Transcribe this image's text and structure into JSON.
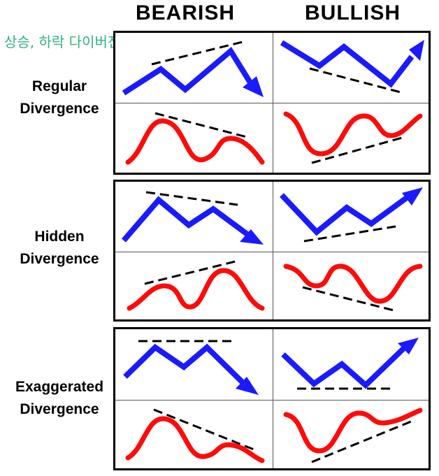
{
  "headers": {
    "bearish": "BEARISH",
    "bullish": "BULLISH"
  },
  "overlay_title": "상승, 하락 다이버전스",
  "rows": [
    {
      "label_line1": "Regular",
      "label_line2": "Divergence"
    },
    {
      "label_line1": "Hidden",
      "label_line2": "Divergence"
    },
    {
      "label_line1": "Exaggerated",
      "label_line2": "Divergence"
    }
  ],
  "colors": {
    "price_line": "#1a1aff",
    "oscillator_line": "#ff0a0a",
    "trend_line": "#000000",
    "overlay_title": "#2fb37e"
  }
}
